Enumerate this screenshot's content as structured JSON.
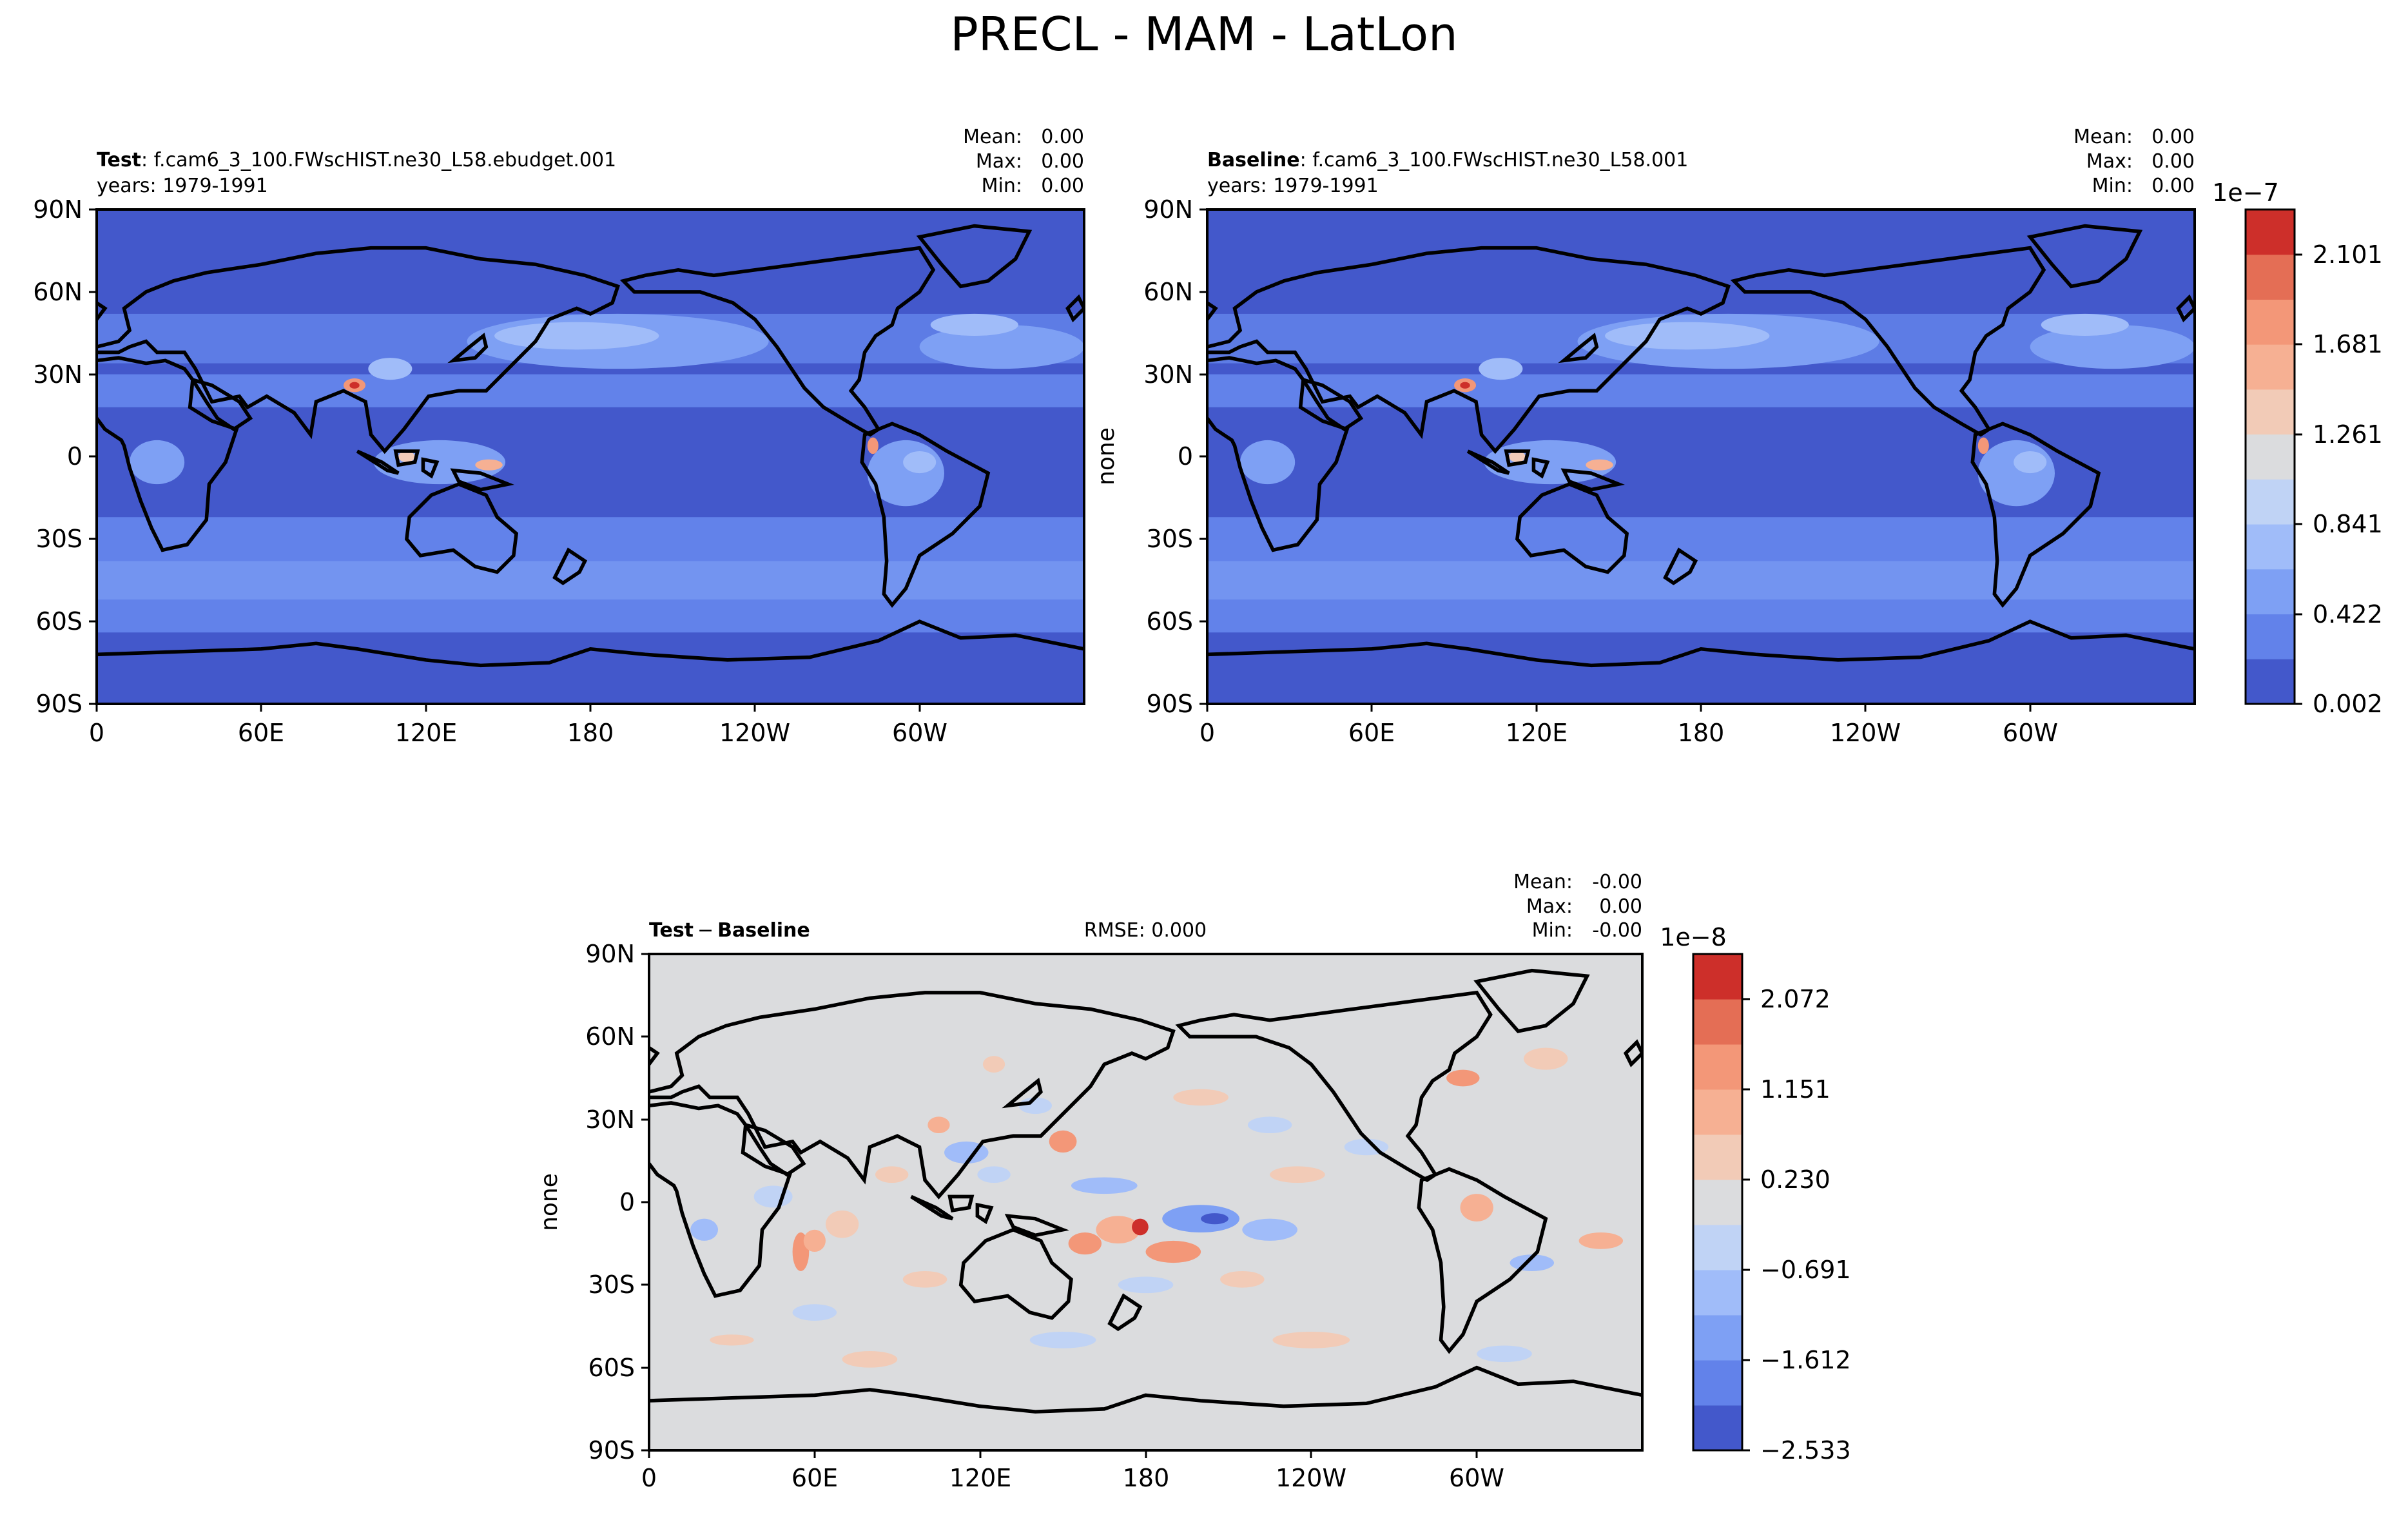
{
  "figure": {
    "title": "PRECL - MAM - LatLon"
  },
  "chart_data": [
    {
      "type": "heatmap",
      "panel": "test",
      "title_bold": "Test",
      "title_rest": ": f.cam6_3_100.FWscHIST.ne30_L58.ebudget.001",
      "subtitle": "years: 1979-1991",
      "ylabel": "",
      "stats": [
        {
          "label": "Mean:",
          "value": "0.00"
        },
        {
          "label": "Max:",
          "value": "0.00"
        },
        {
          "label": "Min:",
          "value": "0.00"
        }
      ],
      "xticks": [
        "0",
        "60E",
        "120E",
        "180",
        "120W",
        "60W"
      ],
      "yticks": [
        "90N",
        "60N",
        "30N",
        "0",
        "30S",
        "60S",
        "90S"
      ],
      "grid": false,
      "colormap": "coolwarm"
    },
    {
      "type": "heatmap",
      "panel": "baseline",
      "title_bold": "Baseline",
      "title_rest": ": f.cam6_3_100.FWscHIST.ne30_L58.001",
      "subtitle": "years: 1979-1991",
      "ylabel": "none",
      "stats": [
        {
          "label": "Mean:",
          "value": "0.00"
        },
        {
          "label": "Max:",
          "value": "0.00"
        },
        {
          "label": "Min:",
          "value": "0.00"
        }
      ],
      "xticks": [
        "0",
        "60E",
        "120E",
        "180",
        "120W",
        "60W"
      ],
      "yticks": [
        "90N",
        "60N",
        "30N",
        "0",
        "30S",
        "60S",
        "90S"
      ],
      "grid": false,
      "colorbar": {
        "exponent": "1e−7",
        "labels": [
          "2.101",
          "1.681",
          "1.261",
          "0.841",
          "0.422",
          "0.002"
        ],
        "colors": [
          "#4358cb",
          "#6282ea",
          "#7ea0f4",
          "#a0bcf9",
          "#c0d3f5",
          "#dbdcde",
          "#f2cbb7",
          "#f6b093",
          "#f39778",
          "#e46e55",
          "#cd2f2a"
        ]
      }
    },
    {
      "type": "heatmap",
      "panel": "difference",
      "title_bold_a": "Test",
      "title_minus": "−",
      "title_bold_b": "Baseline",
      "rmse": "RMSE: 0.000",
      "ylabel": "none",
      "stats": [
        {
          "label": "Mean:",
          "value": "-0.00"
        },
        {
          "label": "Max:",
          "value": "0.00"
        },
        {
          "label": "Min:",
          "value": "-0.00"
        }
      ],
      "xticks": [
        "0",
        "60E",
        "120E",
        "180",
        "120W",
        "60W"
      ],
      "yticks": [
        "90N",
        "60N",
        "30N",
        "0",
        "30S",
        "60S",
        "90S"
      ],
      "grid": false,
      "colorbar": {
        "exponent": "1e−8",
        "labels": [
          "2.072",
          "1.151",
          "0.230",
          "−0.691",
          "−1.612",
          "−2.533"
        ],
        "colors": [
          "#4358cb",
          "#6282ea",
          "#7ea0f4",
          "#a0bcf9",
          "#c0d3f5",
          "#dbdcde",
          "#f2cbb7",
          "#f6b093",
          "#f39778",
          "#e46e55",
          "#cd2f2a"
        ]
      }
    }
  ]
}
